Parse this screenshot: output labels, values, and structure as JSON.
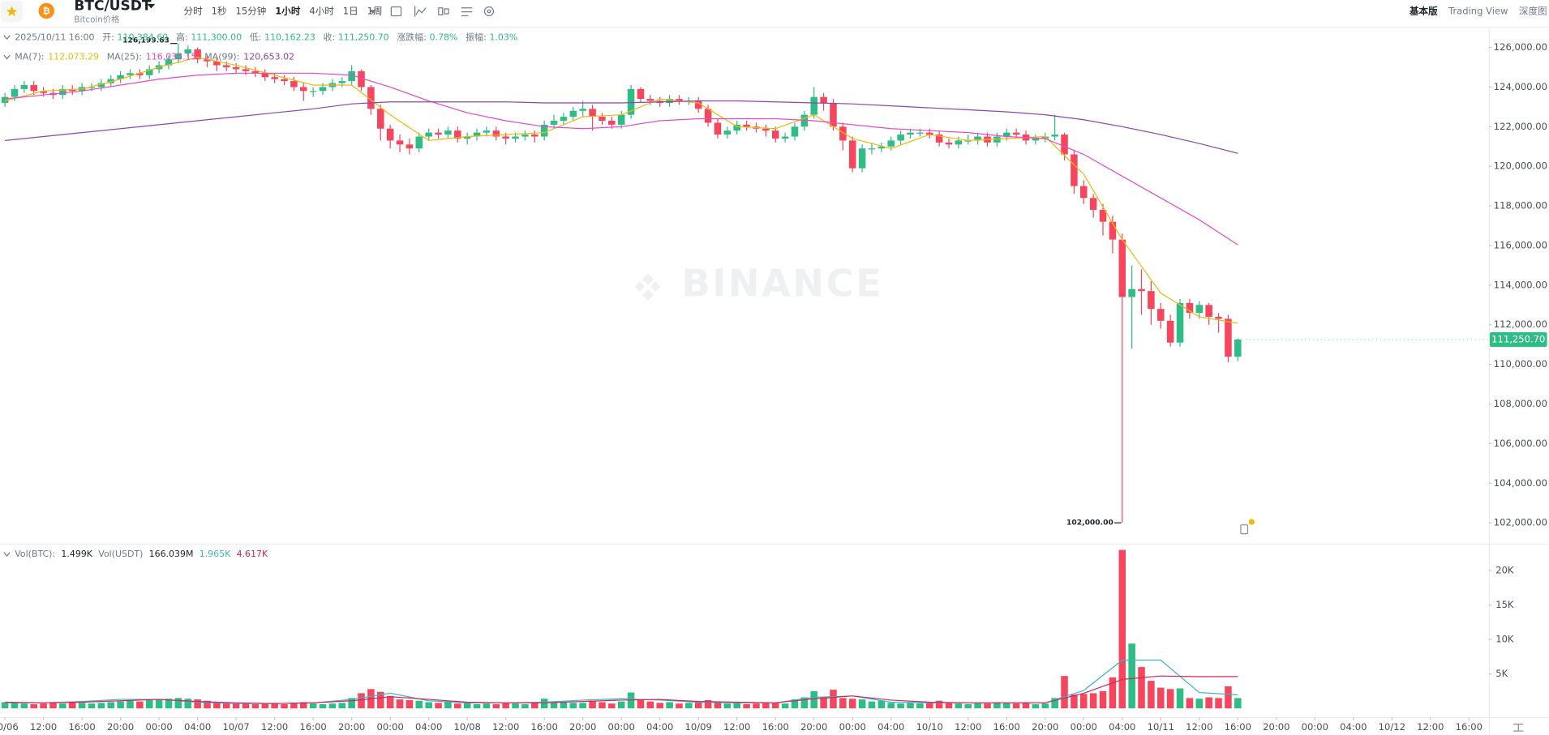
{
  "header": {
    "symbol": "BTC/USDT",
    "subtitle": "Bitcoin价格",
    "intervals": [
      "分时",
      "1秒",
      "15分钟",
      "1小时",
      "4小时",
      "1日",
      "1周"
    ],
    "views": [
      "基本版",
      "Trading View",
      "深度图"
    ]
  },
  "info": {
    "time": "2025/10/11 16:00",
    "fields": [
      {
        "label": "开:",
        "value": "110,384.60"
      },
      {
        "label": "高:",
        "value": "111,300.00"
      },
      {
        "label": "低:",
        "value": "110,162.23"
      },
      {
        "label": "收:",
        "value": "111,250.70"
      },
      {
        "label": "涨跌幅:",
        "value": "0.78%"
      },
      {
        "label": "振幅:",
        "value": "1.03%"
      }
    ]
  },
  "watermark": "BINANCE",
  "chart_data": [
    {
      "type": "candlestick",
      "up_color": "#2ebd85",
      "down_color": "#f6465d",
      "ylim": [
        101000,
        127000
      ],
      "yticks": [
        {
          "value": 102000,
          "label": "102,000.00"
        },
        {
          "value": 104000,
          "label": "104,000.00"
        },
        {
          "value": 106000,
          "label": "106,000.00"
        },
        {
          "value": 108000,
          "label": "108,000.00"
        },
        {
          "value": 110000,
          "label": "110,000.00"
        },
        {
          "value": 112000,
          "label": "112,000.00"
        },
        {
          "value": 114000,
          "label": "114,000.00"
        },
        {
          "value": 116000,
          "label": "116,000.00"
        },
        {
          "value": 118000,
          "label": "118,000.00"
        },
        {
          "value": 120000,
          "label": "120,000.00"
        },
        {
          "value": 122000,
          "label": "122,000.00"
        },
        {
          "value": 124000,
          "label": "124,000.00"
        },
        {
          "value": 126000,
          "label": "126,000.00"
        }
      ],
      "max_label": "126,199.63",
      "min_label": "102,000.00",
      "last_label": "111,250.70",
      "open": [
        123200,
        123500,
        123900,
        124100,
        123800,
        123700,
        123600,
        123900,
        123800,
        124000,
        124000,
        124200,
        124400,
        124600,
        124700,
        124600,
        124900,
        125100,
        125400,
        125700,
        125900,
        125400,
        125300,
        125100,
        125000,
        124900,
        124800,
        124700,
        124500,
        124400,
        124300,
        124000,
        123800,
        123800,
        124000,
        124200,
        124300,
        124800,
        124000,
        122900,
        121900,
        121300,
        121100,
        120900,
        121500,
        121700,
        121600,
        121800,
        121400,
        121500,
        121700,
        121800,
        121500,
        121400,
        121500,
        121600,
        121500,
        122100,
        122300,
        122500,
        122800,
        122900,
        122500,
        122300,
        122100,
        122600,
        123900,
        123400,
        123300,
        123200,
        123400,
        123300,
        123300,
        122900,
        122200,
        121600,
        121800,
        122100,
        122000,
        121900,
        121800,
        121400,
        121500,
        122000,
        122600,
        123500,
        123200,
        122000,
        121300,
        119900,
        120900,
        120900,
        121000,
        121300,
        121600,
        121700,
        121700,
        121600,
        121200,
        121100,
        121300,
        121300,
        121500,
        121200,
        121500,
        121700,
        121600,
        121300,
        121400,
        121500,
        121600,
        120600,
        119000,
        118400,
        117800,
        117200,
        116300,
        113400,
        113800,
        113700,
        112800,
        112200,
        111100,
        113100,
        112600,
        113000,
        112400,
        112300,
        110384.6
      ],
      "high": [
        123700,
        124100,
        124300,
        124300,
        124000,
        123900,
        124100,
        124100,
        124200,
        124200,
        124400,
        124600,
        124800,
        124900,
        124900,
        125100,
        125300,
        125600,
        126199.63,
        126100,
        126000,
        125600,
        125500,
        125300,
        125200,
        125100,
        125000,
        124900,
        124700,
        124600,
        124500,
        124200,
        124000,
        124200,
        124400,
        124500,
        125100,
        124900,
        124100,
        123100,
        122100,
        121600,
        121400,
        121700,
        121900,
        121900,
        122000,
        122000,
        121700,
        121900,
        122000,
        122000,
        121700,
        121700,
        121800,
        121800,
        122300,
        122600,
        122700,
        123000,
        123300,
        123100,
        122700,
        122500,
        122800,
        124100,
        124000,
        123600,
        123500,
        123600,
        123600,
        123500,
        123500,
        123100,
        122400,
        122000,
        122300,
        122300,
        122200,
        122100,
        122000,
        121700,
        122200,
        122800,
        124000,
        123700,
        123400,
        122200,
        121500,
        121100,
        121200,
        121200,
        121500,
        121800,
        121900,
        121900,
        121900,
        121800,
        121400,
        121500,
        121600,
        121700,
        121700,
        121700,
        121900,
        121900,
        121800,
        121600,
        121700,
        122600,
        121700,
        120800,
        119300,
        118600,
        118100,
        117500,
        116600,
        115000,
        114800,
        114200,
        113100,
        112500,
        113300,
        113300,
        113200,
        113100,
        112600,
        112500,
        111300
      ],
      "low": [
        123000,
        123300,
        123700,
        123600,
        123500,
        123400,
        123400,
        123600,
        123600,
        123800,
        123800,
        124000,
        124200,
        124400,
        124400,
        124400,
        124700,
        124900,
        125200,
        125500,
        125200,
        125000,
        124800,
        124800,
        124700,
        124600,
        124500,
        124300,
        124200,
        124100,
        123800,
        123300,
        123500,
        123600,
        123800,
        124000,
        124100,
        123800,
        122600,
        121300,
        120900,
        120700,
        120600,
        120700,
        121300,
        121400,
        121400,
        121200,
        121100,
        121300,
        121500,
        121300,
        121100,
        121200,
        121300,
        121200,
        121300,
        121900,
        122100,
        122300,
        122500,
        121800,
        122100,
        121900,
        121900,
        122400,
        123200,
        123100,
        123000,
        123000,
        123100,
        123100,
        122700,
        122000,
        121400,
        121400,
        121600,
        121800,
        121700,
        121500,
        121200,
        121200,
        121300,
        121800,
        122400,
        122800,
        121800,
        120800,
        119700,
        119700,
        120600,
        120700,
        120800,
        121100,
        121400,
        121500,
        121400,
        121000,
        120900,
        120900,
        121100,
        121100,
        121000,
        121000,
        121300,
        121400,
        121100,
        121100,
        121200,
        121300,
        120300,
        118600,
        118100,
        117400,
        116500,
        115600,
        102000,
        110800,
        112500,
        112000,
        111800,
        110900,
        110900,
        112300,
        112300,
        112000,
        111600,
        110100,
        110162.23
      ],
      "close": [
        123500,
        123900,
        124100,
        123800,
        123700,
        123600,
        123900,
        123800,
        124000,
        124000,
        124200,
        124400,
        124600,
        124700,
        124600,
        124900,
        125100,
        125400,
        125700,
        125900,
        125400,
        125300,
        125100,
        125000,
        124900,
        124800,
        124700,
        124500,
        124400,
        124300,
        124000,
        123800,
        123800,
        124000,
        124200,
        124300,
        124800,
        124000,
        122900,
        121900,
        121300,
        121100,
        120900,
        121500,
        121700,
        121600,
        121800,
        121400,
        121500,
        121700,
        121800,
        121500,
        121400,
        121500,
        121600,
        121500,
        122100,
        122300,
        122500,
        122800,
        122900,
        122500,
        122300,
        122100,
        122600,
        123900,
        123400,
        123300,
        123200,
        123400,
        123300,
        123300,
        122900,
        122200,
        121600,
        121800,
        122100,
        122000,
        121900,
        121800,
        121400,
        121500,
        122000,
        122600,
        123500,
        123200,
        122000,
        121300,
        119900,
        120900,
        120900,
        121000,
        121300,
        121600,
        121700,
        121700,
        121600,
        121200,
        121100,
        121300,
        121300,
        121500,
        121200,
        121500,
        121700,
        121600,
        121300,
        121400,
        121500,
        121600,
        120600,
        119000,
        118400,
        117800,
        117200,
        116300,
        113400,
        113800,
        113700,
        112800,
        112200,
        111100,
        113100,
        112600,
        113000,
        112400,
        112300,
        110384.6,
        111250.7
      ],
      "ma": [
        {
          "name": "MA(7):",
          "value_label": "112,073.29",
          "color": "#f0b90b",
          "values": [
            123300,
            123800,
            123900,
            124400,
            125000,
            125500,
            125100,
            124600,
            124100,
            124100,
            122600,
            121300,
            121500,
            121600,
            121700,
            122500,
            122600,
            123400,
            123200,
            122000,
            121900,
            122600,
            121400,
            120900,
            121600,
            121300,
            121400,
            121500,
            119600,
            116300,
            113600,
            112400,
            112073.29
          ]
        },
        {
          "name": "MA(25):",
          "value_label": "116,033.15",
          "color": "#e84ac9",
          "values": [
            123400,
            123600,
            123800,
            124100,
            124400,
            124600,
            124700,
            124700,
            124700,
            124600,
            124000,
            123300,
            122700,
            122300,
            122000,
            121900,
            122000,
            122300,
            122400,
            122400,
            122400,
            122300,
            122100,
            121900,
            121800,
            121700,
            121500,
            121400,
            120600,
            119500,
            118400,
            117300,
            116033.15
          ]
        },
        {
          "name": "MA(99):",
          "value_label": "120,653.02",
          "color": "#8e44ad",
          "values": [
            121300,
            121500,
            121700,
            121900,
            122100,
            122300,
            122500,
            122700,
            122900,
            123150,
            123250,
            123250,
            123250,
            123250,
            123200,
            123200,
            123200,
            123250,
            123300,
            123300,
            123250,
            123200,
            123150,
            123050,
            122950,
            122850,
            122750,
            122600,
            122350,
            122000,
            121600,
            121150,
            120653.02
          ]
        }
      ]
    },
    {
      "type": "bar",
      "legend_texts": [
        "Vol(BTC):",
        "1.499K",
        "Vol(USDT)",
        "166.039M"
      ],
      "ylim": [
        0,
        23200
      ],
      "yticks": [
        {
          "value": 5000,
          "label": "5K"
        },
        {
          "value": 10000,
          "label": "10K"
        },
        {
          "value": 15000,
          "label": "15K"
        },
        {
          "value": 20000,
          "label": "20K"
        }
      ],
      "values": [
        900,
        800,
        700,
        600,
        700,
        800,
        700,
        900,
        800,
        700,
        800,
        900,
        1000,
        1100,
        1000,
        1200,
        1300,
        1400,
        1500,
        1400,
        1300,
        1100,
        900,
        800,
        700,
        700,
        600,
        700,
        800,
        600,
        800,
        900,
        700,
        600,
        700,
        800,
        1500,
        2200,
        2800,
        2400,
        1800,
        1300,
        1200,
        1100,
        900,
        800,
        1000,
        700,
        800,
        600,
        700,
        600,
        800,
        700,
        600,
        900,
        1400,
        1000,
        900,
        800,
        800,
        1100,
        900,
        700,
        1000,
        2300,
        1200,
        1000,
        800,
        900,
        700,
        800,
        900,
        1200,
        1000,
        700,
        800,
        600,
        700,
        900,
        800,
        700,
        1300,
        1600,
        2500,
        1700,
        2700,
        1500,
        1400,
        1300,
        1000,
        1100,
        800,
        700,
        900,
        700,
        800,
        1100,
        900,
        700,
        600,
        800,
        700,
        900,
        800,
        700,
        900,
        600,
        700,
        1500,
        4700,
        2000,
        2100,
        2200,
        2500,
        4500,
        23000,
        9400,
        6000,
        4000,
        3000,
        2800,
        2900,
        1500,
        1400,
        1600,
        1500,
        3200,
        1499
      ],
      "ma": [
        {
          "value_label": "1.965K",
          "color": "#3cb4c8",
          "values": [
            800,
            800,
            1000,
            1300,
            1300,
            900,
            700,
            700,
            800,
            1300,
            2200,
            1100,
            800,
            800,
            900,
            1200,
            1400,
            1200,
            900,
            800,
            800,
            1600,
            1800,
            900,
            800,
            800,
            800,
            800,
            2600,
            7000,
            7000,
            2300,
            1965
          ]
        },
        {
          "value_label": "4.617K",
          "color": "#d6245a",
          "values": [
            900,
            800,
            900,
            1100,
            1300,
            1000,
            800,
            700,
            800,
            1100,
            1700,
            1300,
            900,
            800,
            800,
            1000,
            1200,
            1300,
            1000,
            900,
            800,
            1400,
            1800,
            1200,
            900,
            800,
            800,
            800,
            2200,
            4200,
            4700,
            4600,
            4617
          ]
        }
      ],
      "xtick_labels": [
        "10/06",
        "12:00",
        "16:00",
        "20:00",
        "00:00",
        "04:00",
        "10/07",
        "12:00",
        "16:00",
        "20:00",
        "00:00",
        "04:00",
        "10/08",
        "12:00",
        "16:00",
        "20:00",
        "00:00",
        "04:00",
        "10/09",
        "12:00",
        "16:00",
        "20:00",
        "00:00",
        "04:00",
        "10/10",
        "12:00",
        "16:00",
        "20:00",
        "00:00",
        "04:00",
        "10/11",
        "12:00",
        "16:00",
        "20:00",
        "00:00",
        "04:00",
        "10/12",
        "12:00",
        "16:00"
      ]
    }
  ]
}
